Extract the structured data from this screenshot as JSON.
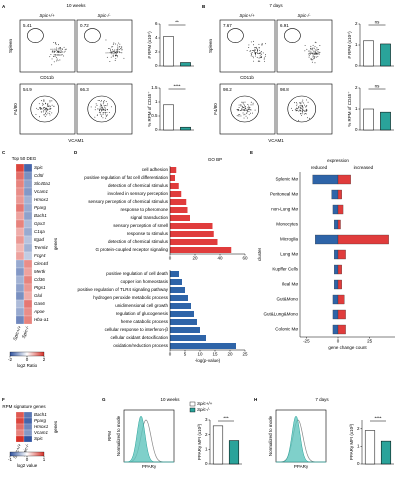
{
  "panels": {
    "A": {
      "letter": "A",
      "title": "10 weeks",
      "groups": [
        "Spic+/+",
        "Spic-/-"
      ],
      "tissue": "Spleen",
      "x_top": "CD11b",
      "y_bottom": "F4/80",
      "x_bottom": "VCAM1",
      "gates_top": [
        "5.41",
        "0.72"
      ],
      "gates_bottom": [
        "54.9",
        "66.3"
      ]
    },
    "B": {
      "letter": "B",
      "title": "7 days",
      "groups": [
        "Spic+/+",
        "Spic-/-"
      ],
      "tissue": "Spleen",
      "x_top": "CD11b",
      "y_bottom": "F4/80",
      "x_bottom": "VCAM1",
      "gates_top": [
        "7.67",
        "6.91"
      ],
      "gates_bottom": [
        "98.2",
        "98.8"
      ]
    },
    "C": {
      "letter": "C"
    },
    "D": {
      "letter": "D"
    },
    "E": {
      "letter": "E"
    },
    "F": {
      "letter": "F"
    },
    "G": {
      "letter": "G",
      "title": "10 weeks",
      "row_label": "RPM",
      "hist_ylabel": "Normalized to mode",
      "hist_xlabel": "PPARγ",
      "groups": [
        "Spic+/+",
        "Spic-/-"
      ]
    },
    "H": {
      "letter": "H",
      "title": "7 days",
      "hist_ylabel": "Normalized to mode",
      "hist_xlabel": "PPARγ"
    }
  },
  "chart_data": [
    {
      "type": "bar",
      "ylabel": "# RPM (x10⁴)",
      "values": [
        4.2,
        0.5
      ],
      "colors": [
        "#ffffff",
        "#2aa39a"
      ],
      "ylim": [
        0,
        6
      ],
      "yticks": [
        0,
        2,
        4,
        6
      ],
      "annotation": "**"
    },
    {
      "type": "bar",
      "ylabel": "% RPM of CD45⁺",
      "values": [
        0.9,
        0.1
      ],
      "colors": [
        "#ffffff",
        "#2aa39a"
      ],
      "ylim": [
        0,
        1.5
      ],
      "yticks": [
        0,
        0.5,
        1,
        1.5
      ],
      "annotation": "****"
    },
    {
      "type": "bar",
      "ylabel": "# RPM (x10⁴)",
      "values": [
        1.2,
        1.05
      ],
      "colors": [
        "#ffffff",
        "#2aa39a"
      ],
      "ylim": [
        0,
        2
      ],
      "yticks": [
        0,
        1,
        2
      ],
      "annotation": "ns"
    },
    {
      "type": "bar",
      "ylabel": "% RPM of CD45⁺",
      "values": [
        1.0,
        0.85
      ],
      "colors": [
        "#ffffff",
        "#2aa39a"
      ],
      "ylim": [
        0,
        2
      ],
      "yticks": [
        0,
        1,
        2
      ],
      "annotation": "ns"
    },
    {
      "type": "hbar",
      "title": "GO BP",
      "color": "#e03c3c",
      "categories": [
        "cell adhesion",
        "positive regulation of fat cell differentiation",
        "detection of chemical stimulus",
        "involved in sensory perception",
        "sensory perception of chemical stimulus",
        "response to pheromone",
        "signal transduction",
        "sensory perception of smell",
        "response to stimulus",
        "detection of chemical stimulus",
        "G protein-coupled receptor signaling"
      ],
      "values": [
        5,
        4,
        7,
        9,
        13,
        14,
        16,
        34,
        35,
        38,
        49
      ],
      "xlim": [
        0,
        60
      ],
      "xticks": [
        0,
        20,
        40,
        60
      ]
    },
    {
      "type": "hbar",
      "xlabel": "-log(p-value)",
      "color": "#2e64a8",
      "categories": [
        "positive regulation of cell death",
        "copper ion homeostasis",
        "positive regulation of TLR4 signaling pathway",
        "hydrogen peroxide metabolic process",
        "unidimensional cell growth",
        "regulation of glucogenesis",
        "heme catabolic process",
        "cellular response to interferon-β",
        "cellular oxidant detoxification",
        "oxidation/reduction process"
      ],
      "values": [
        3,
        4,
        5,
        6,
        7,
        8,
        9,
        10,
        12,
        22
      ],
      "xlim": [
        0,
        25
      ],
      "xticks": [
        0,
        5,
        10,
        15,
        20,
        25
      ]
    },
    {
      "type": "diverging-bar",
      "title": "expression",
      "ylabel": "cluster",
      "xlabel": "gene change count",
      "categories": [
        "Splenic Mø",
        "Peritoneal Mø",
        "non-Lung Mø",
        "Monocytes",
        "Microglia",
        "Lung Mø",
        "Kupffer Cells",
        "Ileal Mø",
        "Gut&Mono",
        "Gut&Lung&Mono",
        "Colonic Mø"
      ],
      "series": [
        {
          "name": "reduced",
          "color": "#2e64a8",
          "values": [
            -20,
            -5,
            -4,
            -3,
            -18,
            -3,
            -3,
            -3,
            -4,
            -4,
            -4
          ]
        },
        {
          "name": "increased",
          "color": "#e03c3c",
          "values": [
            10,
            3,
            4,
            2,
            40,
            6,
            3,
            3,
            5,
            6,
            6
          ]
        }
      ],
      "xlim": [
        -30,
        45
      ],
      "xticks": [
        -25,
        0,
        25
      ]
    },
    {
      "type": "heatmap",
      "title": "Top 50 DEG",
      "ylabel": "genes",
      "colorbar_label": "log2 Ratio",
      "rows": [
        "Spic",
        "Cd5l",
        "Slc40a1",
        "Vcam1",
        "Hmox1",
        "Pparg",
        "Bach1",
        "Gpx3",
        "C1qa",
        "Itgad",
        "Treml4",
        "Fcgr4",
        "Clec4d",
        "Mertk",
        "Cd36",
        "Ptgs1",
        "Glul",
        "Gas6",
        "Apoe",
        "Hba-a1"
      ],
      "columns": [
        "Spic+/+",
        "Spic-/-"
      ],
      "values": [
        [
          1.8,
          -1.8
        ],
        [
          1.4,
          -1.3
        ],
        [
          1.2,
          -1.1
        ],
        [
          1.1,
          -1.2
        ],
        [
          1.0,
          -0.9
        ],
        [
          1.3,
          -1.0
        ],
        [
          0.9,
          -1.1
        ],
        [
          1.2,
          -0.8
        ],
        [
          0.8,
          -1.0
        ],
        [
          1.0,
          -0.7
        ],
        [
          0.7,
          -0.9
        ],
        [
          0.9,
          -0.6
        ],
        [
          -1.0,
          1.1
        ],
        [
          -1.2,
          0.9
        ],
        [
          -0.9,
          1.2
        ],
        [
          -1.1,
          1.0
        ],
        [
          -1.3,
          0.8
        ],
        [
          -0.8,
          1.3
        ],
        [
          -1.0,
          1.1
        ],
        [
          -1.4,
          1.2
        ]
      ],
      "zlim": [
        -2,
        2
      ],
      "zticks": [
        -2,
        0,
        2
      ]
    },
    {
      "type": "heatmap",
      "title": "RPM signature genes",
      "ylabel": "genes",
      "colorbar_label": "log2 value",
      "rows": [
        "Bach1",
        "Pparg",
        "Hmox1",
        "Vcam1",
        "Spic"
      ],
      "columns": [
        "Spic+/+",
        "Spic-/-"
      ],
      "values": [
        [
          0.8,
          -0.8
        ],
        [
          0.9,
          -0.9
        ],
        [
          0.7,
          -0.7
        ],
        [
          0.6,
          -0.6
        ],
        [
          1,
          -1
        ]
      ],
      "zlim": [
        -1,
        1
      ],
      "zticks": [
        -1,
        0,
        1
      ]
    },
    {
      "type": "bar",
      "ylabel": "PPARγ MFI (x10³)",
      "values": [
        2.6,
        1.6
      ],
      "colors": [
        "#ffffff",
        "#2aa39a"
      ],
      "ylim": [
        0,
        3
      ],
      "yticks": [
        0,
        1,
        2,
        3
      ],
      "annotation": "***"
    },
    {
      "type": "bar",
      "ylabel": "PPARγ MFI (x10³)",
      "values": [
        1.9,
        1.3
      ],
      "colors": [
        "#ffffff",
        "#2aa39a"
      ],
      "ylim": [
        0,
        2.5
      ],
      "yticks": [
        0,
        1,
        2
      ],
      "annotation": "****"
    }
  ]
}
